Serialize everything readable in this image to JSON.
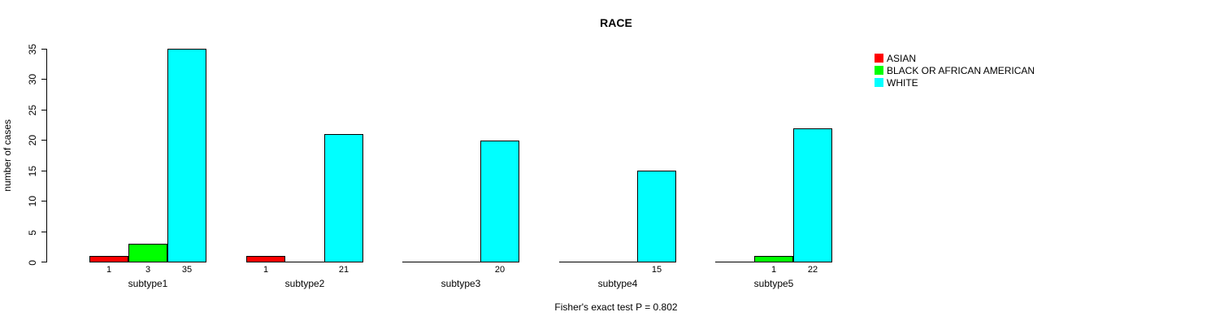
{
  "chart_data": {
    "type": "bar",
    "title": "RACE",
    "ylabel": "number of cases",
    "xlabel": "",
    "footnote": "Fisher's exact test P = 0.802",
    "categories": [
      "subtype1",
      "subtype2",
      "subtype3",
      "subtype4",
      "subtype5"
    ],
    "series": [
      {
        "name": "ASIAN",
        "color": "#FF0000",
        "values": [
          1,
          1,
          0,
          0,
          0
        ]
      },
      {
        "name": "BLACK OR AFRICAN AMERICAN",
        "color": "#00FF00",
        "values": [
          3,
          0,
          0,
          0,
          1
        ]
      },
      {
        "name": "WHITE",
        "color": "#00FFFF",
        "values": [
          35,
          21,
          20,
          15,
          22
        ]
      }
    ],
    "yticks": [
      0,
      5,
      10,
      15,
      20,
      25,
      30,
      35
    ],
    "ylim": [
      0,
      35
    ],
    "grid": false,
    "legend_position": "top-right-inside",
    "value_labels": "shown below baseline for nonzero bars only",
    "bar_border_color": "#000000",
    "background_color": "#FFFFFF"
  }
}
